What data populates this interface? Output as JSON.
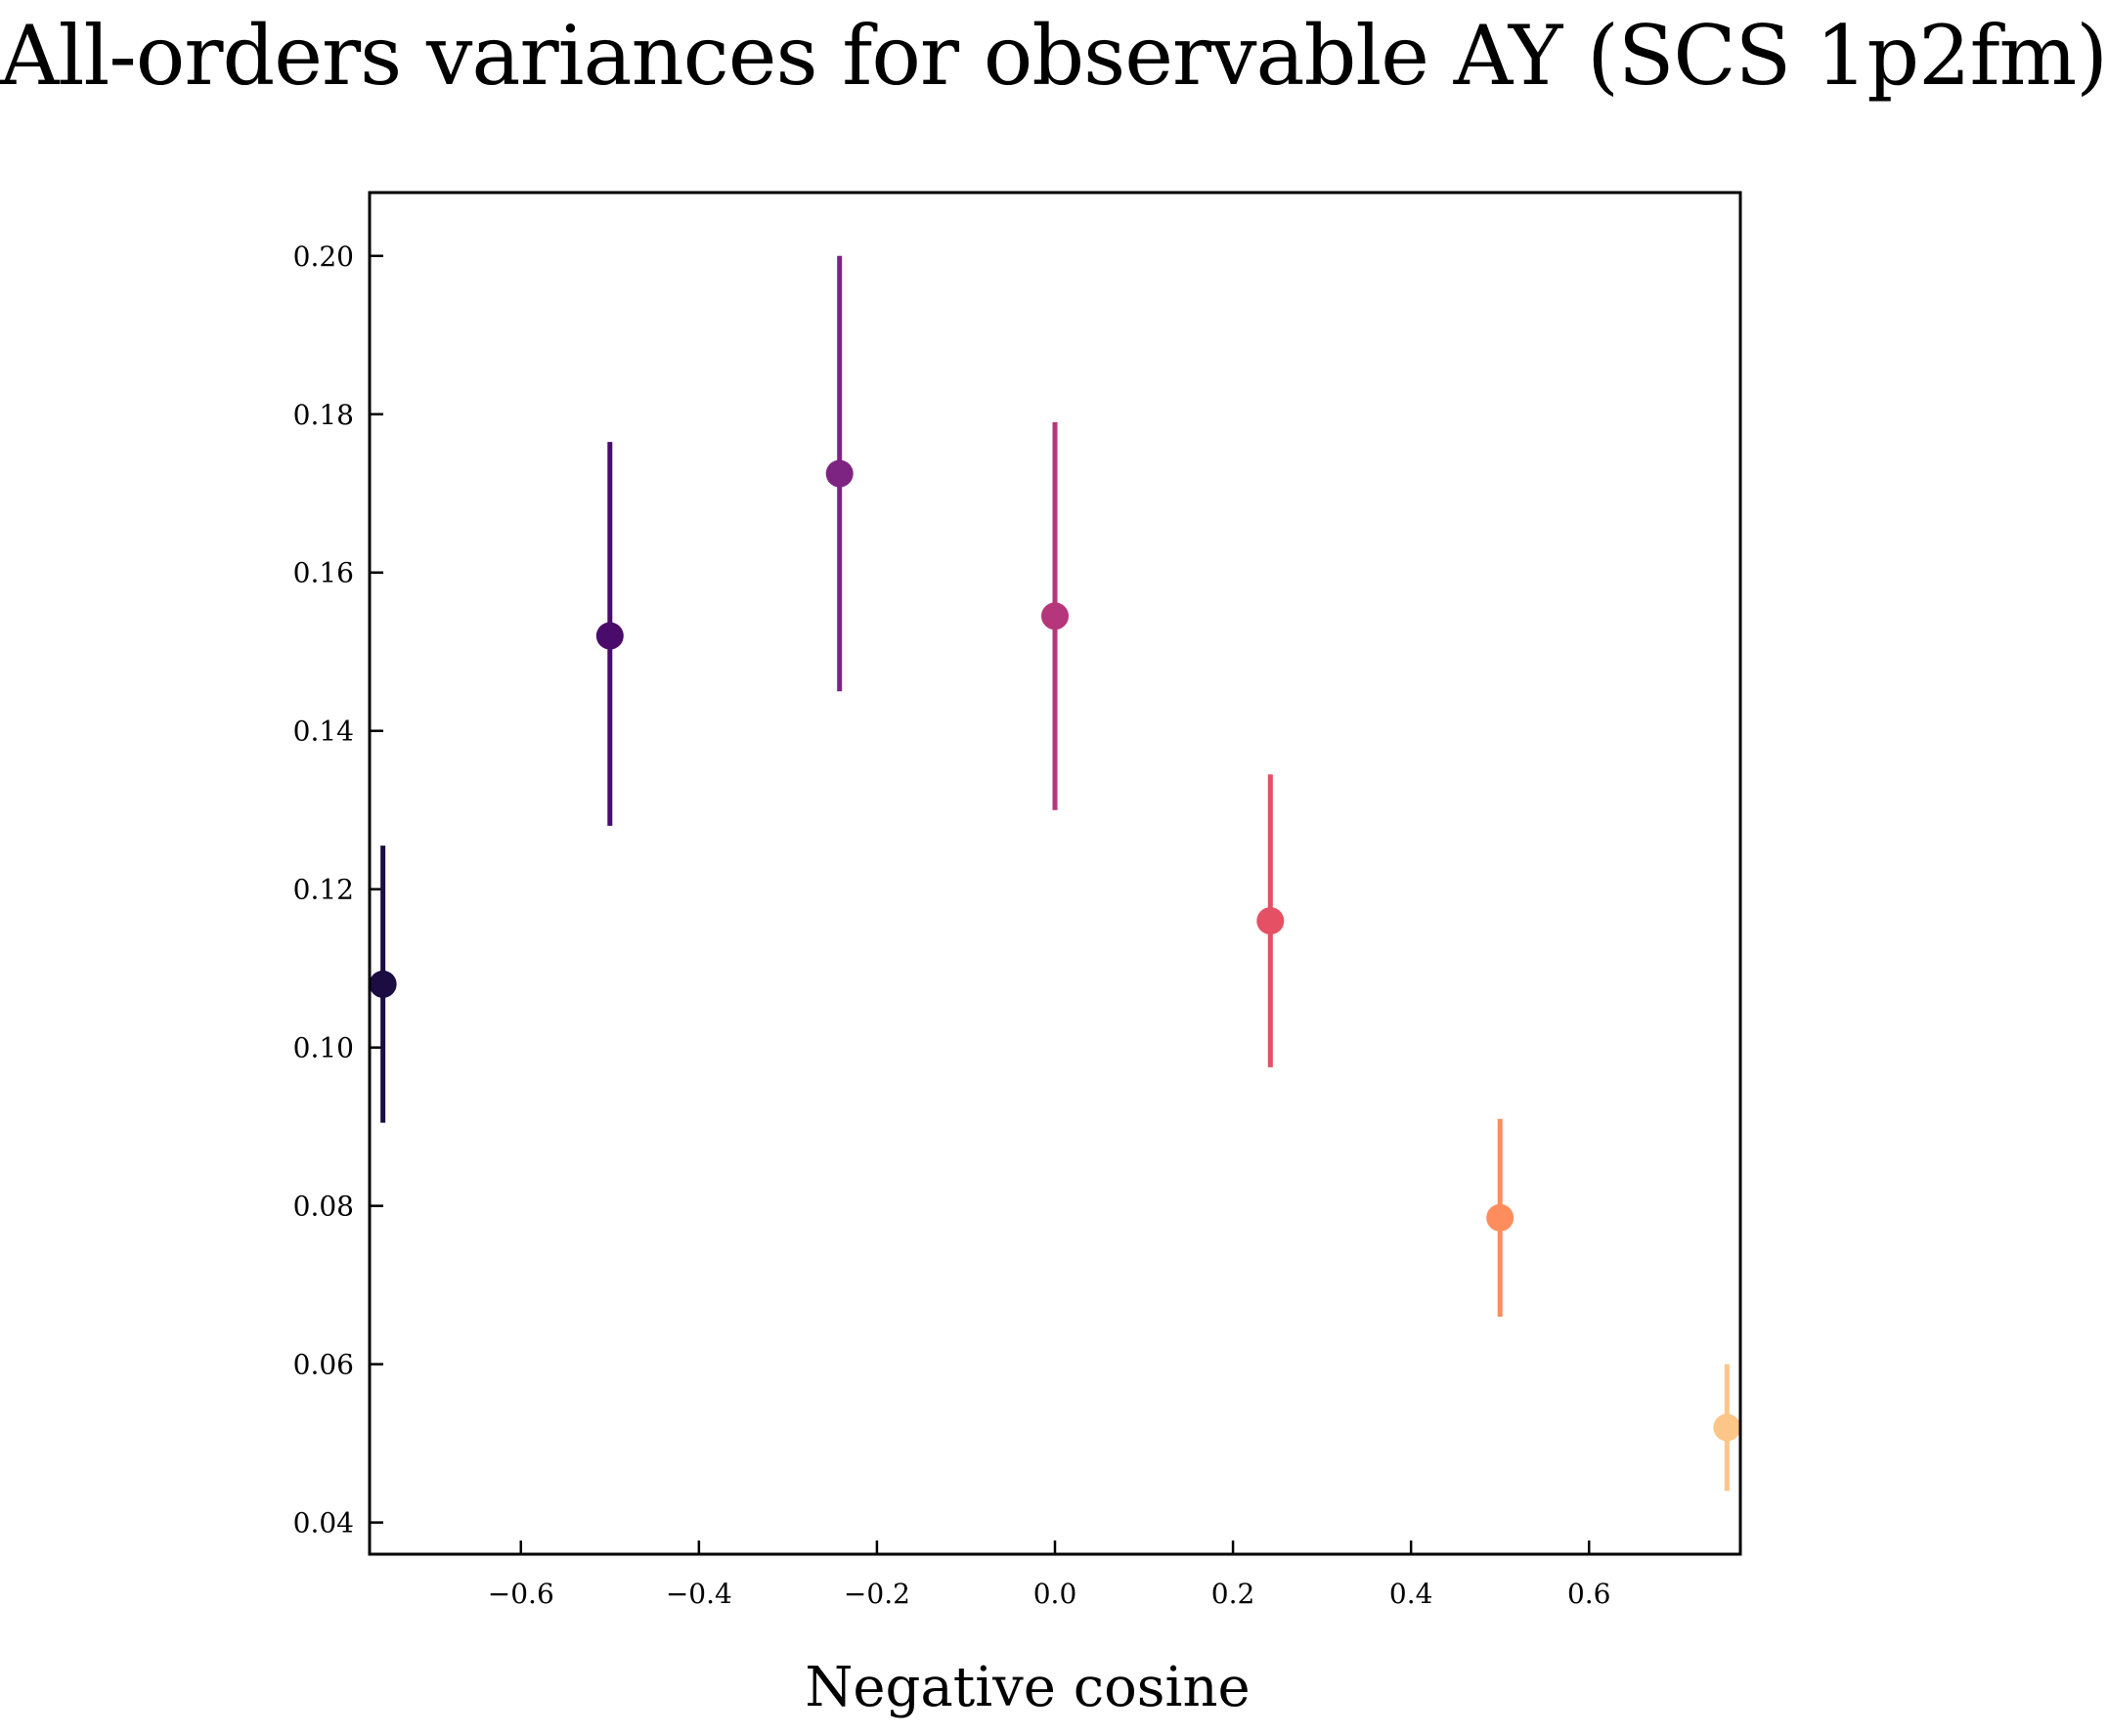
{
  "chart_data": {
    "type": "scatter",
    "title": "All-orders variances for observable AY (SCS 1p2fm)",
    "xlabel": "Negative cosine",
    "ylabel": "",
    "xlim": [
      -0.77,
      0.77
    ],
    "ylim": [
      0.036,
      0.208
    ],
    "xticks": [
      -0.6,
      -0.4,
      -0.2,
      0.0,
      0.2,
      0.4,
      0.6
    ],
    "xtick_labels": [
      "−0.6",
      "−0.4",
      "−0.2",
      "0.0",
      "0.2",
      "0.4",
      "0.6"
    ],
    "yticks": [
      0.04,
      0.06,
      0.08,
      0.1,
      0.12,
      0.14,
      0.16,
      0.18,
      0.2
    ],
    "ytick_labels": [
      "0.04",
      "0.06",
      "0.08",
      "0.10",
      "0.12",
      "0.14",
      "0.16",
      "0.18",
      "0.20"
    ],
    "grid": false,
    "points": [
      {
        "x": -0.755,
        "y": 0.108,
        "yerr_low": 0.0905,
        "yerr_high": 0.1255,
        "color": "#1b0c41"
      },
      {
        "x": -0.5,
        "y": 0.152,
        "yerr_low": 0.128,
        "yerr_high": 0.1765,
        "color": "#4a0c6b"
      },
      {
        "x": -0.242,
        "y": 0.1725,
        "yerr_low": 0.145,
        "yerr_high": 0.2,
        "color": "#7d2482"
      },
      {
        "x": 0.0,
        "y": 0.1545,
        "yerr_low": 0.13,
        "yerr_high": 0.179,
        "color": "#b5367a"
      },
      {
        "x": 0.242,
        "y": 0.116,
        "yerr_low": 0.0975,
        "yerr_high": 0.1345,
        "color": "#e55064"
      },
      {
        "x": 0.5,
        "y": 0.0785,
        "yerr_low": 0.066,
        "yerr_high": 0.091,
        "color": "#fe8d5d"
      },
      {
        "x": 0.755,
        "y": 0.052,
        "yerr_low": 0.044,
        "yerr_high": 0.06,
        "color": "#fcc688"
      }
    ]
  }
}
